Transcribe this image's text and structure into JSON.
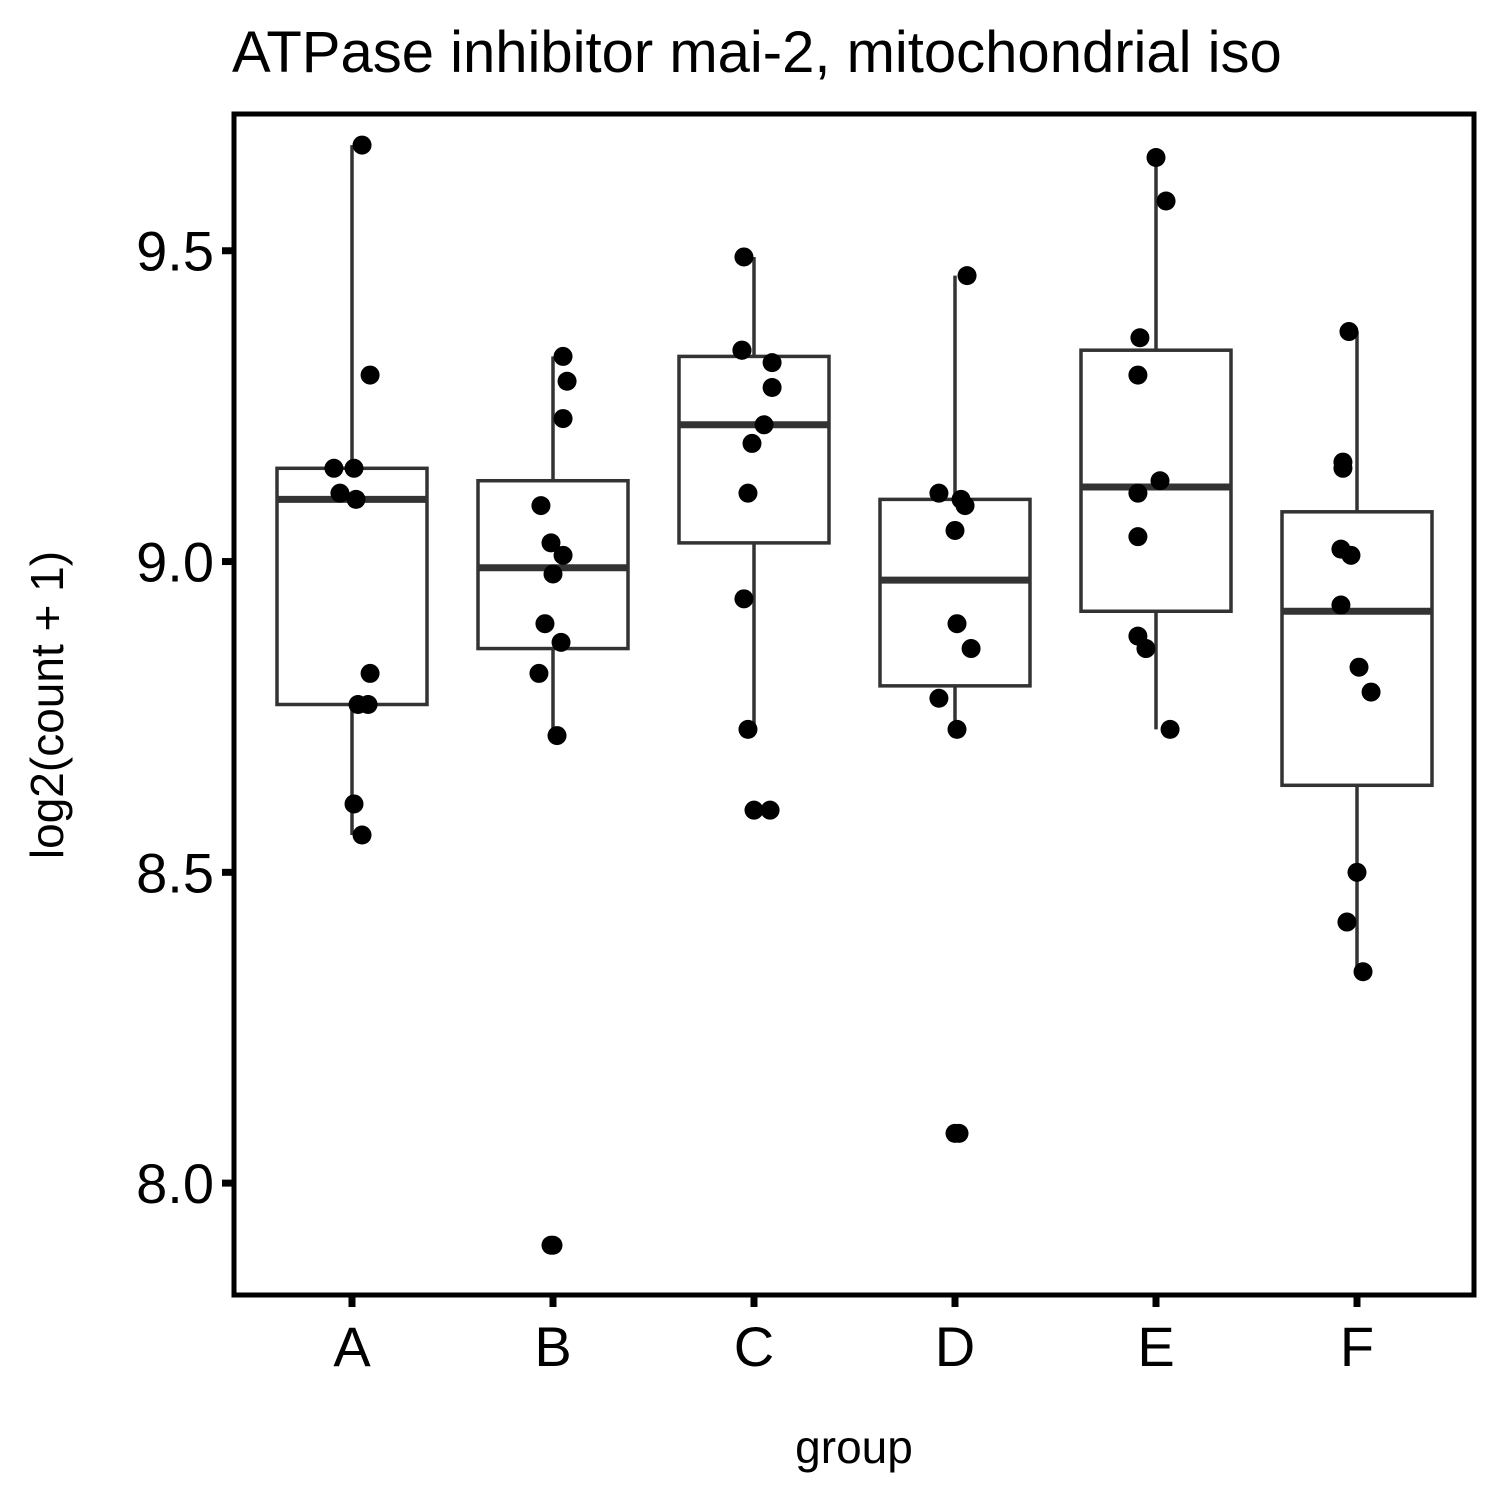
{
  "chart_data": {
    "type": "box",
    "title": "ATPase inhibitor mai-2, mitochondrial iso",
    "xlabel": "group",
    "ylabel": "log2(count + 1)",
    "ylim": [
      7.82,
      9.72
    ],
    "yticks": [
      8.0,
      8.5,
      9.0,
      9.5
    ],
    "ytick_labels": [
      "8.0",
      "8.5",
      "9.0",
      "9.5"
    ],
    "categories": [
      "A",
      "B",
      "C",
      "D",
      "E",
      "F"
    ],
    "boxes": [
      {
        "group": "A",
        "whisker_low": 8.56,
        "q1": 8.77,
        "median": 9.1,
        "q3": 9.15,
        "whisker_high": 9.67
      },
      {
        "group": "B",
        "whisker_low": 8.72,
        "q1": 8.86,
        "median": 8.99,
        "q3": 9.13,
        "whisker_high": 9.33
      },
      {
        "group": "C",
        "whisker_low": 8.73,
        "q1": 9.03,
        "median": 9.22,
        "q3": 9.33,
        "whisker_high": 9.49
      },
      {
        "group": "D",
        "whisker_low": 8.73,
        "q1": 8.8,
        "median": 8.97,
        "q3": 9.1,
        "whisker_high": 9.46
      },
      {
        "group": "E",
        "whisker_low": 8.73,
        "q1": 8.92,
        "median": 9.12,
        "q3": 9.34,
        "whisker_high": 9.65
      },
      {
        "group": "F",
        "whisker_low": 8.34,
        "q1": 8.64,
        "median": 8.92,
        "q3": 9.08,
        "whisker_high": 9.37
      }
    ],
    "points": [
      {
        "group": "A",
        "values": [
          9.67,
          9.3,
          9.15,
          9.15,
          9.11,
          9.1,
          8.82,
          8.77,
          8.77,
          8.61,
          8.56
        ],
        "offsets": [
          0.05,
          0.09,
          -0.09,
          0.01,
          -0.06,
          0.02,
          0.09,
          0.03,
          0.08,
          0.01,
          0.05
        ]
      },
      {
        "group": "B",
        "values": [
          9.33,
          9.29,
          9.23,
          9.09,
          9.03,
          9.01,
          8.98,
          8.9,
          8.87,
          8.82,
          8.72,
          7.9,
          7.9
        ],
        "offsets": [
          0.05,
          0.07,
          0.05,
          -0.06,
          -0.01,
          0.05,
          0.0,
          -0.04,
          0.04,
          -0.07,
          0.02,
          -0.01,
          0.0
        ]
      },
      {
        "group": "C",
        "values": [
          9.49,
          9.34,
          9.34,
          9.32,
          9.28,
          9.22,
          9.19,
          9.11,
          8.94,
          8.73,
          8.6,
          8.6
        ],
        "offsets": [
          -0.05,
          -0.06,
          -0.06,
          0.09,
          0.09,
          0.05,
          -0.01,
          -0.03,
          -0.05,
          -0.03,
          0.0,
          0.08
        ]
      },
      {
        "group": "D",
        "values": [
          9.46,
          9.11,
          9.1,
          9.09,
          9.05,
          8.9,
          8.86,
          8.78,
          8.73,
          8.08,
          8.08
        ],
        "offsets": [
          0.06,
          -0.08,
          0.03,
          0.05,
          0.0,
          0.01,
          0.08,
          -0.08,
          0.01,
          0.0,
          0.02
        ]
      },
      {
        "group": "E",
        "values": [
          9.65,
          9.58,
          9.36,
          9.3,
          9.13,
          9.11,
          9.04,
          8.88,
          8.86,
          8.73
        ],
        "offsets": [
          0.0,
          0.05,
          -0.08,
          -0.09,
          0.02,
          -0.09,
          -0.09,
          -0.09,
          -0.05,
          0.07
        ]
      },
      {
        "group": "F",
        "values": [
          9.37,
          9.16,
          9.15,
          9.02,
          9.01,
          8.93,
          8.83,
          8.79,
          8.5,
          8.42,
          8.34
        ],
        "offsets": [
          -0.04,
          -0.07,
          -0.07,
          -0.08,
          -0.03,
          -0.08,
          0.01,
          0.07,
          0.0,
          -0.05,
          0.03
        ]
      }
    ],
    "grid": false,
    "legend": "none"
  }
}
